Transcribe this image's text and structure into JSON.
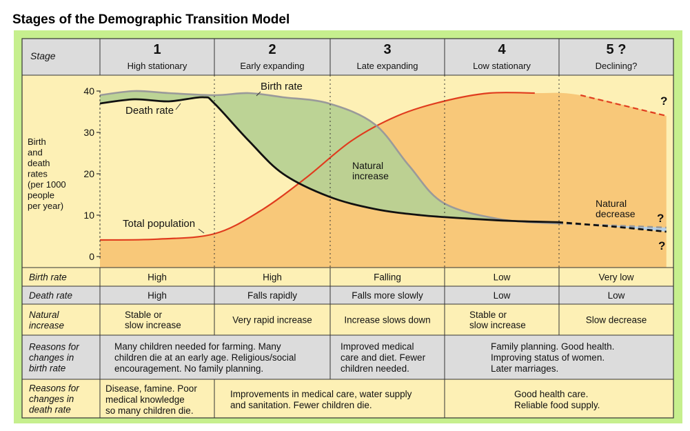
{
  "title": "Stages of the Demographic Transition Model",
  "stage_header": "Stage",
  "stages": [
    {
      "number": "1",
      "name": "High stationary"
    },
    {
      "number": "2",
      "name": "Early expanding"
    },
    {
      "number": "3",
      "name": "Late expanding"
    },
    {
      "number": "4",
      "name": "Low stationary"
    },
    {
      "number": "5 ?",
      "name": "Declining?"
    }
  ],
  "yaxis": {
    "label_lines": [
      "Birth",
      "and",
      "death",
      "rates",
      "(per 1000",
      "people",
      "per year)"
    ],
    "ticks": [
      "40",
      "30",
      "20",
      "10",
      "0"
    ]
  },
  "annotations": {
    "birth_rate": "Birth rate",
    "death_rate": "Death rate",
    "total_population": "Total population",
    "natural_increase": [
      "Natural",
      "increase"
    ],
    "natural_decrease": [
      "Natural",
      "decrease"
    ],
    "question_mark": "?"
  },
  "rows": [
    {
      "header": [
        "Birth rate"
      ],
      "cells": [
        [
          "High"
        ],
        [
          "High"
        ],
        [
          "Falling"
        ],
        [
          "Low"
        ],
        [
          "Very low"
        ]
      ]
    },
    {
      "header": [
        "Death rate"
      ],
      "cells": [
        [
          "High"
        ],
        [
          "Falls rapidly"
        ],
        [
          "Falls more slowly"
        ],
        [
          "Low"
        ],
        [
          "Low"
        ]
      ]
    },
    {
      "header": [
        "Natural",
        "increase"
      ],
      "cells": [
        [
          "Stable or",
          "slow increase"
        ],
        [
          "Very rapid increase"
        ],
        [
          "Increase slows down"
        ],
        [
          "Stable or",
          "slow increase"
        ],
        [
          "Slow decrease"
        ]
      ]
    },
    {
      "header": [
        "Reasons for",
        "changes in",
        "birth rate"
      ],
      "groups": [
        [
          "Many children needed for farming. Many",
          "children die at an early age. Religious/social",
          "encouragement. No family planning."
        ],
        [
          "Improved medical",
          "care and diet. Fewer",
          "children needed."
        ],
        [
          "Family planning. Good health.",
          "Improving status of women.",
          "Later marriages."
        ]
      ]
    },
    {
      "header": [
        "Reasons for",
        "changes in",
        "death rate"
      ],
      "groups": [
        [
          "Disease, famine. Poor",
          "medical knowledge",
          "so many children die."
        ],
        [
          "Improvements in medical care, water supply",
          "and sanitation. Fewer children die."
        ],
        [
          "Good health care.",
          "Reliable food supply."
        ]
      ]
    }
  ],
  "chart_data": {
    "type": "line",
    "x_domain": "stages 1-5",
    "ylim": [
      0,
      40
    ],
    "series": [
      {
        "name": "Birth rate",
        "color": "#9a9a9a",
        "x": [
          1.0,
          1.3,
          1.6,
          2.0,
          2.3,
          2.6,
          3.0,
          3.4,
          3.7,
          4.0,
          4.5,
          5.0,
          5.5,
          5.95
        ],
        "values": [
          39,
          40,
          39.5,
          39,
          39.5,
          38.5,
          37,
          32,
          22,
          13,
          9,
          8,
          7.5,
          7
        ]
      },
      {
        "name": "Death rate",
        "color": "#111111",
        "x": [
          1.0,
          1.3,
          1.6,
          1.9,
          2.0,
          2.3,
          2.6,
          3.0,
          3.4,
          3.8,
          4.2,
          4.6,
          5.0,
          5.5,
          5.95
        ],
        "values": [
          37,
          38,
          37.5,
          38.5,
          37,
          28,
          20,
          14.5,
          11.5,
          10,
          9.2,
          8.6,
          8.3,
          7.2,
          6
        ]
      },
      {
        "name": "Total population",
        "color": "#e03c1e",
        "x": [
          1.0,
          1.5,
          2.0,
          2.4,
          2.8,
          3.2,
          3.6,
          4.0,
          4.4,
          4.8,
          5.2,
          5.95
        ],
        "values": [
          4,
          4.2,
          5.5,
          11,
          19,
          28,
          34,
          37.5,
          39.5,
          39.5,
          39,
          34
        ]
      }
    ]
  },
  "colors": {
    "frame": "#c6ef8e",
    "chart_bg": "#fdf0b5",
    "population_fill": "#f8c879",
    "natural_increase_fill": "#b8d193",
    "natural_decrease_fill": "#b5d0e8",
    "grey_row": "#dcdcdc",
    "yellow_row": "#fdf0b5",
    "population_line": "#e03c1e",
    "birth_line": "#9a9a9a",
    "death_line": "#111111"
  }
}
